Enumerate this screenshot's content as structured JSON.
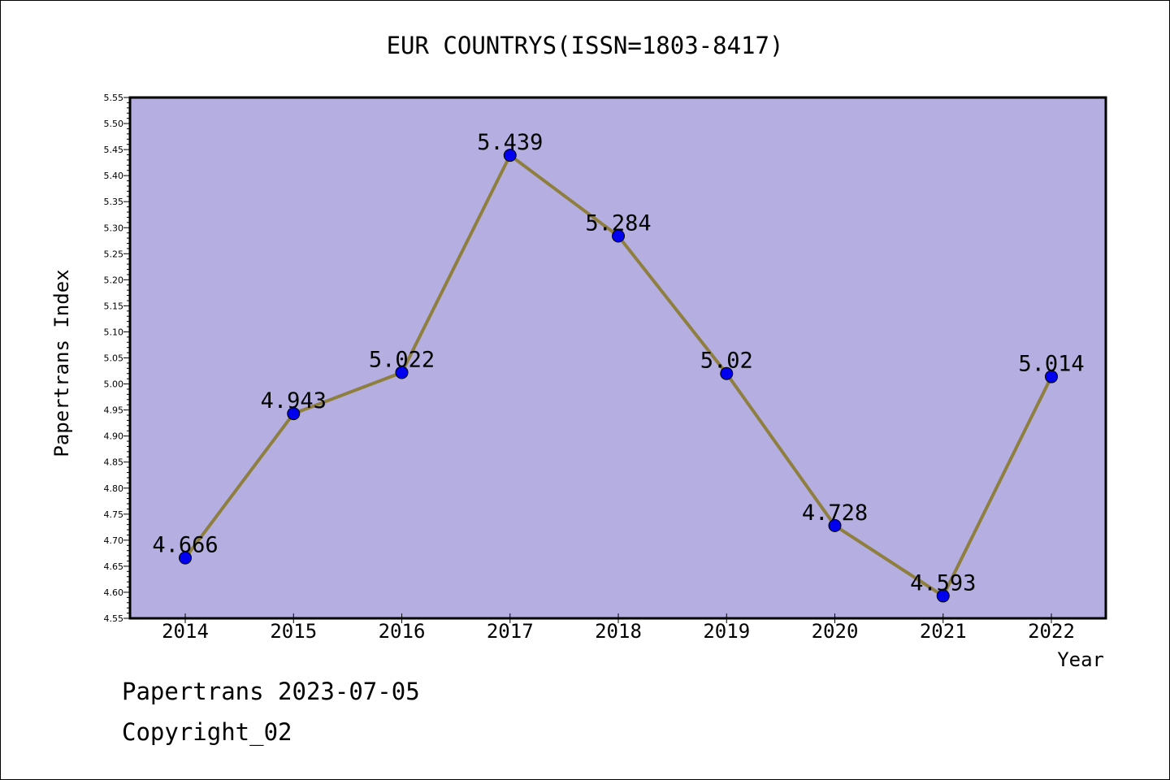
{
  "chart_data": {
    "type": "line",
    "title": "EUR COUNTRYS(ISSN=1803-8417)",
    "xlabel": "Year",
    "ylabel": "Papertrans Index",
    "x": [
      2014,
      2015,
      2016,
      2017,
      2018,
      2019,
      2020,
      2021,
      2022
    ],
    "series": [
      {
        "values": [
          4.666,
          4.943,
          5.022,
          5.439,
          5.284,
          5.02,
          4.728,
          4.593,
          5.014
        ],
        "data_labels": [
          "4.666",
          "4.943",
          "5.022",
          "5.439",
          "5.284",
          "5.02",
          "4.728",
          "4.593",
          "5.014"
        ]
      }
    ],
    "ylim": [
      4.55,
      5.55
    ],
    "y_ticks": [
      "4.55",
      "4.60",
      "4.65",
      "4.70",
      "4.75",
      "4.80",
      "4.85",
      "4.90",
      "4.95",
      "5.00",
      "5.05",
      "5.10",
      "5.15",
      "5.20",
      "5.25",
      "5.30",
      "5.35",
      "5.40",
      "5.45",
      "5.50",
      "5.55"
    ],
    "x_ticks": [
      "2014",
      "2015",
      "2016",
      "2017",
      "2018",
      "2019",
      "2020",
      "2021",
      "2022"
    ],
    "grid": false,
    "colors": {
      "plot_background": "#b4aee1",
      "line": "#8f7f3f",
      "marker": "#0000ee"
    }
  },
  "footer": {
    "line1": "Papertrans 2023-07-05",
    "line2": "Copyright_02"
  }
}
